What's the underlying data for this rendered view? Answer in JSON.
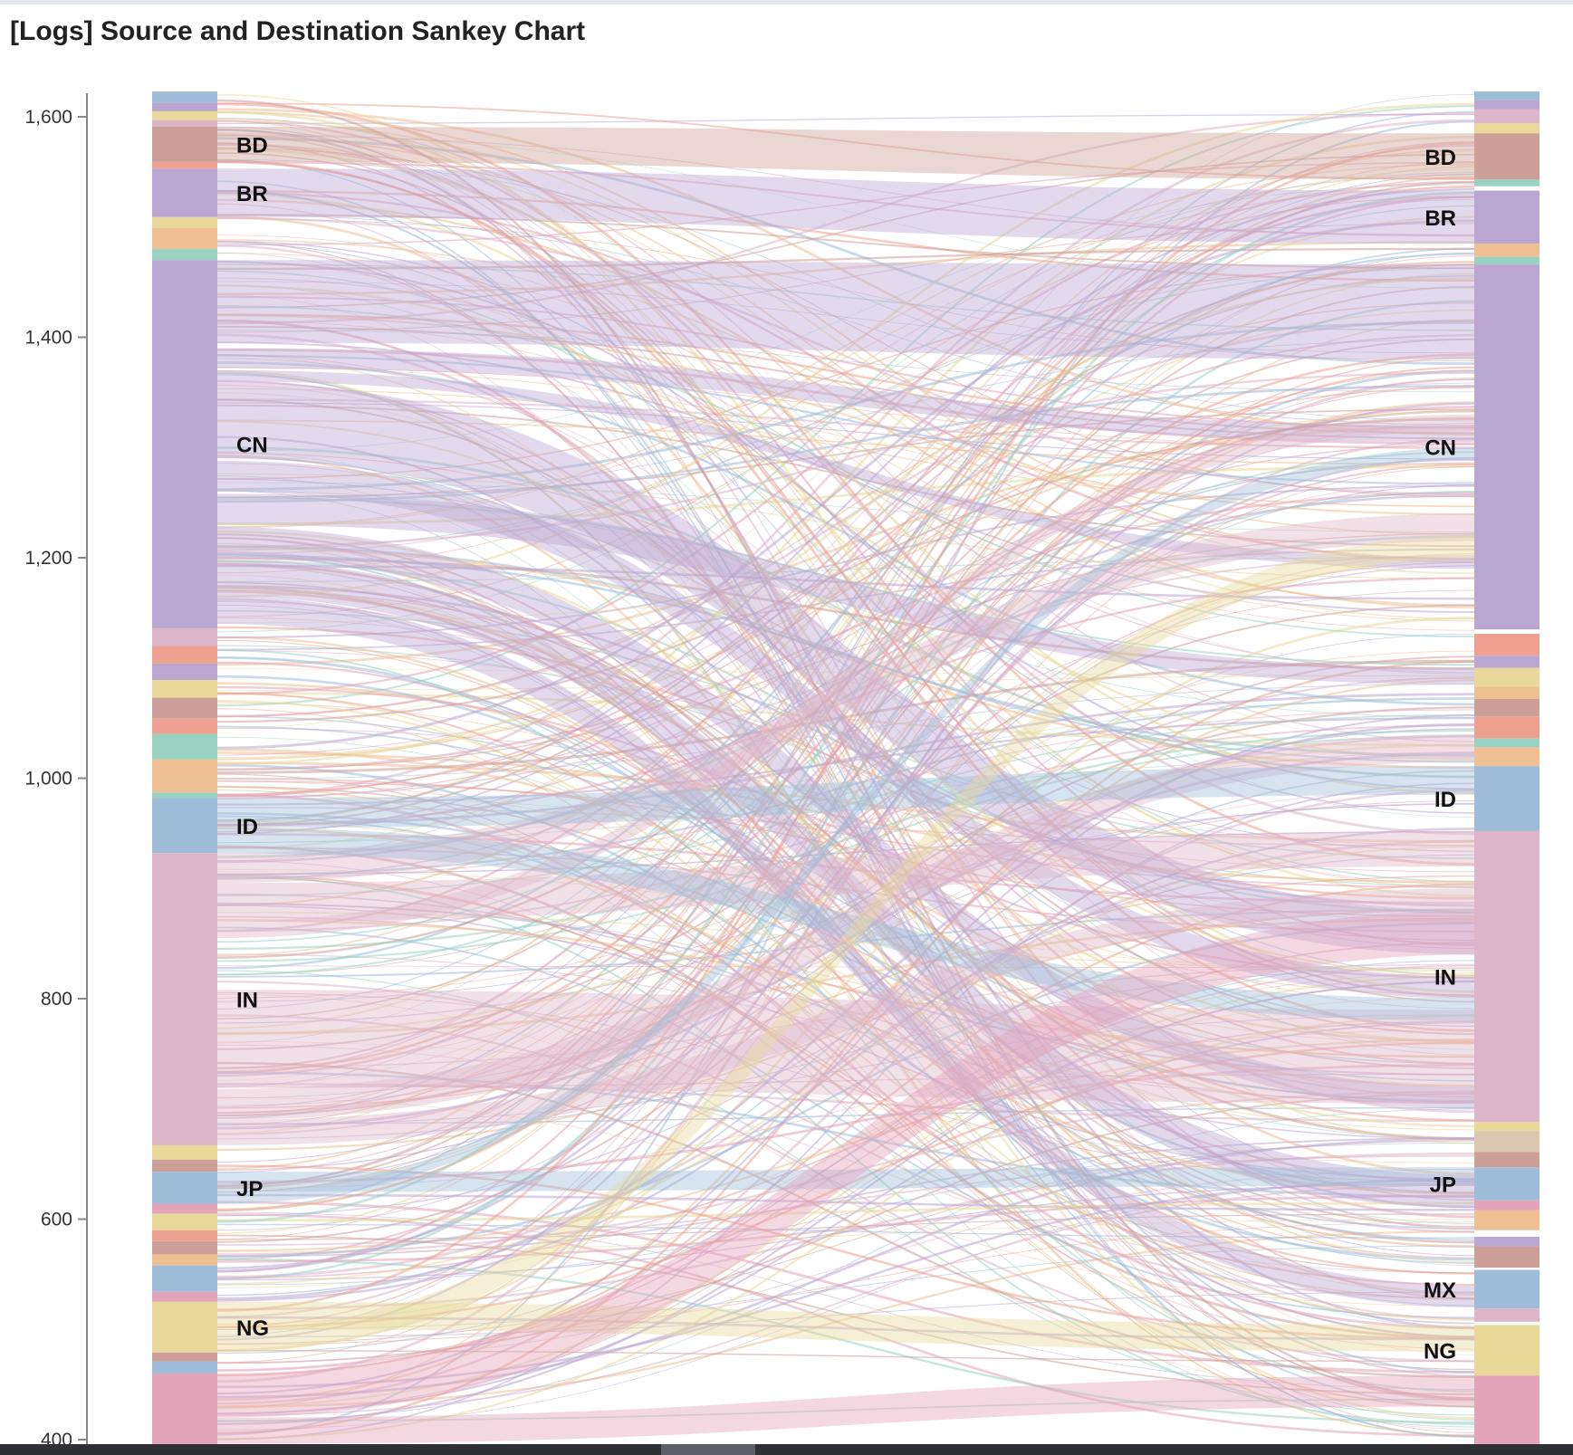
{
  "title": "[Logs] Source and Destination Sankey Chart",
  "chart_data": {
    "type": "sankey",
    "title": "[Logs] Source and Destination Sankey Chart",
    "ylim": [
      396,
      1625
    ],
    "yticks": [
      400,
      600,
      800,
      1000,
      1200,
      1400,
      1600
    ],
    "ytick_labels": [
      "400",
      "600",
      "800",
      "1,000",
      "1,200",
      "1,400",
      "1,600"
    ],
    "colors": {
      "purple": "#b9a6d1",
      "pink": "#ddb5c8",
      "blue": "#9fbcd9",
      "yellow": "#e8d99a",
      "brown": "#cd9f99",
      "salmon": "#eea190",
      "orange": "#eec093",
      "teal": "#9ad2c2",
      "hotpink": "#e3a3b9",
      "beige": "#dcc7b0"
    },
    "source_nodes": [
      {
        "label": "",
        "top": 1623,
        "bottom": 1613,
        "color": "blue"
      },
      {
        "label": "",
        "top": 1613,
        "bottom": 1605,
        "color": "purple"
      },
      {
        "label": "",
        "top": 1605,
        "bottom": 1597,
        "color": "yellow"
      },
      {
        "label": "",
        "top": 1597,
        "bottom": 1591,
        "color": "pink"
      },
      {
        "label": "BD",
        "top": 1591,
        "bottom": 1559,
        "color": "brown"
      },
      {
        "label": "",
        "top": 1559,
        "bottom": 1553,
        "color": "salmon"
      },
      {
        "label": "BR",
        "top": 1553,
        "bottom": 1509,
        "color": "purple"
      },
      {
        "label": "",
        "top": 1509,
        "bottom": 1499,
        "color": "yellow"
      },
      {
        "label": "",
        "top": 1499,
        "bottom": 1480,
        "color": "orange"
      },
      {
        "label": "",
        "top": 1480,
        "bottom": 1470,
        "color": "teal"
      },
      {
        "label": "CN",
        "top": 1470,
        "bottom": 1136,
        "color": "purple"
      },
      {
        "label": "",
        "top": 1136,
        "bottom": 1120,
        "color": "pink"
      },
      {
        "label": "",
        "top": 1120,
        "bottom": 1104,
        "color": "salmon"
      },
      {
        "label": "",
        "top": 1104,
        "bottom": 1089,
        "color": "purple"
      },
      {
        "label": "",
        "top": 1089,
        "bottom": 1073,
        "color": "yellow"
      },
      {
        "label": "",
        "top": 1073,
        "bottom": 1054,
        "color": "brown"
      },
      {
        "label": "",
        "top": 1054,
        "bottom": 1040,
        "color": "salmon"
      },
      {
        "label": "",
        "top": 1040,
        "bottom": 1017,
        "color": "teal"
      },
      {
        "label": "",
        "top": 1017,
        "bottom": 987,
        "color": "orange"
      },
      {
        "label": "",
        "top": 987,
        "bottom": 982,
        "color": "teal"
      },
      {
        "label": "ID",
        "top": 982,
        "bottom": 932,
        "color": "blue"
      },
      {
        "label": "IN",
        "top": 932,
        "bottom": 667,
        "color": "pink"
      },
      {
        "label": "",
        "top": 667,
        "bottom": 654,
        "color": "yellow"
      },
      {
        "label": "",
        "top": 654,
        "bottom": 643,
        "color": "brown"
      },
      {
        "label": "JP",
        "top": 643,
        "bottom": 614,
        "color": "blue"
      },
      {
        "label": "",
        "top": 614,
        "bottom": 605,
        "color": "hotpink"
      },
      {
        "label": "",
        "top": 605,
        "bottom": 590,
        "color": "yellow"
      },
      {
        "label": "",
        "top": 590,
        "bottom": 580,
        "color": "salmon"
      },
      {
        "label": "",
        "top": 580,
        "bottom": 568,
        "color": "brown"
      },
      {
        "label": "",
        "top": 568,
        "bottom": 558,
        "color": "orange"
      },
      {
        "label": "",
        "top": 558,
        "bottom": 534,
        "color": "blue"
      },
      {
        "label": "",
        "top": 534,
        "bottom": 525,
        "color": "hotpink"
      },
      {
        "label": "NG",
        "top": 525,
        "bottom": 479,
        "color": "yellow"
      },
      {
        "label": "",
        "top": 479,
        "bottom": 471,
        "color": "brown"
      },
      {
        "label": "",
        "top": 471,
        "bottom": 460,
        "color": "blue"
      },
      {
        "label": "",
        "top": 460,
        "bottom": 396,
        "color": "hotpink"
      }
    ],
    "dest_nodes": [
      {
        "label": "",
        "top": 1623,
        "bottom": 1615,
        "color": "blue"
      },
      {
        "label": "",
        "top": 1615,
        "bottom": 1607,
        "color": "purple"
      },
      {
        "label": "",
        "top": 1607,
        "bottom": 1594,
        "color": "pink"
      },
      {
        "label": "",
        "top": 1594,
        "bottom": 1585,
        "color": "yellow"
      },
      {
        "label": "BD",
        "top": 1585,
        "bottom": 1543,
        "color": "brown"
      },
      {
        "label": "",
        "top": 1543,
        "bottom": 1537,
        "color": "teal"
      },
      {
        "label": "BR",
        "top": 1533,
        "bottom": 1485,
        "color": "purple"
      },
      {
        "label": "",
        "top": 1485,
        "bottom": 1473,
        "color": "orange"
      },
      {
        "label": "",
        "top": 1473,
        "bottom": 1466,
        "color": "teal"
      },
      {
        "label": "CN",
        "top": 1466,
        "bottom": 1135,
        "color": "purple"
      },
      {
        "label": "",
        "top": 1131,
        "bottom": 1111,
        "color": "salmon"
      },
      {
        "label": "",
        "top": 1111,
        "bottom": 1100,
        "color": "purple"
      },
      {
        "label": "",
        "top": 1100,
        "bottom": 1083,
        "color": "yellow"
      },
      {
        "label": "",
        "top": 1083,
        "bottom": 1072,
        "color": "orange"
      },
      {
        "label": "",
        "top": 1072,
        "bottom": 1056,
        "color": "brown"
      },
      {
        "label": "",
        "top": 1056,
        "bottom": 1036,
        "color": "salmon"
      },
      {
        "label": "",
        "top": 1036,
        "bottom": 1028,
        "color": "teal"
      },
      {
        "label": "",
        "top": 1028,
        "bottom": 1011,
        "color": "orange"
      },
      {
        "label": "ID",
        "top": 1011,
        "bottom": 952,
        "color": "blue"
      },
      {
        "label": "IN",
        "top": 952,
        "bottom": 688,
        "color": "pink"
      },
      {
        "label": "",
        "top": 688,
        "bottom": 680,
        "color": "yellow"
      },
      {
        "label": "",
        "top": 680,
        "bottom": 661,
        "color": "beige"
      },
      {
        "label": "",
        "top": 661,
        "bottom": 647,
        "color": "brown"
      },
      {
        "label": "JP",
        "top": 647,
        "bottom": 617,
        "color": "blue"
      },
      {
        "label": "",
        "top": 617,
        "bottom": 608,
        "color": "hotpink"
      },
      {
        "label": "",
        "top": 608,
        "bottom": 590,
        "color": "orange"
      },
      {
        "label": "",
        "top": 584,
        "bottom": 575,
        "color": "purple"
      },
      {
        "label": "",
        "top": 575,
        "bottom": 556,
        "color": "brown"
      },
      {
        "label": "MX",
        "top": 554,
        "bottom": 519,
        "color": "blue"
      },
      {
        "label": "",
        "top": 519,
        "bottom": 507,
        "color": "pink"
      },
      {
        "label": "NG",
        "top": 504,
        "bottom": 458,
        "color": "yellow"
      },
      {
        "label": "",
        "top": 458,
        "bottom": 396,
        "color": "hotpink"
      }
    ],
    "flows": [
      {
        "s_top": 1470,
        "s_bottom": 1455,
        "d_top": 1466,
        "d_bottom": 1440,
        "color": "purple"
      },
      {
        "s_top": 1455,
        "s_bottom": 1395,
        "d_top": 1440,
        "d_bottom": 1380,
        "color": "purple"
      },
      {
        "s_top": 1390,
        "s_bottom": 1372,
        "d_top": 1320,
        "d_bottom": 1305,
        "color": "purple"
      },
      {
        "s_top": 1370,
        "s_bottom": 1360,
        "d_top": 1200,
        "d_bottom": 1190,
        "color": "purple"
      },
      {
        "s_top": 1360,
        "s_bottom": 1290,
        "d_top": 880,
        "d_bottom": 840,
        "color": "purple"
      },
      {
        "s_top": 1288,
        "s_bottom": 1260,
        "d_top": 820,
        "d_bottom": 800,
        "color": "purple"
      },
      {
        "s_top": 1258,
        "s_bottom": 1230,
        "d_top": 1100,
        "d_bottom": 1085,
        "color": "purple"
      },
      {
        "s_top": 1228,
        "s_bottom": 1200,
        "d_top": 720,
        "d_bottom": 700,
        "color": "purple"
      },
      {
        "s_top": 1198,
        "s_bottom": 1165,
        "d_top": 640,
        "d_bottom": 610,
        "color": "purple"
      },
      {
        "s_top": 1165,
        "s_bottom": 1140,
        "d_top": 540,
        "d_bottom": 520,
        "color": "purple"
      },
      {
        "s_top": 1553,
        "s_bottom": 1530,
        "d_top": 1533,
        "d_bottom": 1505,
        "color": "purple"
      },
      {
        "s_top": 1530,
        "s_bottom": 1509,
        "d_top": 1505,
        "d_bottom": 1485,
        "color": "purple"
      },
      {
        "s_top": 1591,
        "s_bottom": 1575,
        "d_top": 1585,
        "d_bottom": 1565,
        "color": "brown"
      },
      {
        "s_top": 1575,
        "s_bottom": 1559,
        "d_top": 1565,
        "d_bottom": 1543,
        "color": "brown"
      },
      {
        "s_top": 932,
        "s_bottom": 905,
        "d_top": 1240,
        "d_bottom": 1215,
        "color": "pink"
      },
      {
        "s_top": 905,
        "s_bottom": 870,
        "d_top": 952,
        "d_bottom": 920,
        "color": "pink"
      },
      {
        "s_top": 870,
        "s_bottom": 855,
        "d_top": 1330,
        "d_bottom": 1315,
        "color": "pink"
      },
      {
        "s_top": 808,
        "s_bottom": 760,
        "d_top": 790,
        "d_bottom": 745,
        "color": "pink"
      },
      {
        "s_top": 760,
        "s_bottom": 720,
        "d_top": 745,
        "d_bottom": 705,
        "color": "pink"
      },
      {
        "s_top": 718,
        "s_bottom": 690,
        "d_top": 1040,
        "d_bottom": 1015,
        "color": "pink"
      },
      {
        "s_top": 690,
        "s_bottom": 667,
        "d_top": 900,
        "d_bottom": 880,
        "color": "pink"
      },
      {
        "s_top": 982,
        "s_bottom": 955,
        "d_top": 1011,
        "d_bottom": 985,
        "color": "blue"
      },
      {
        "s_top": 955,
        "s_bottom": 932,
        "d_top": 800,
        "d_bottom": 780,
        "color": "blue"
      },
      {
        "s_top": 643,
        "s_bottom": 625,
        "d_top": 647,
        "d_bottom": 630,
        "color": "blue"
      },
      {
        "s_top": 625,
        "s_bottom": 614,
        "d_top": 1300,
        "d_bottom": 1290,
        "color": "blue"
      },
      {
        "s_top": 525,
        "s_bottom": 500,
        "d_top": 504,
        "d_bottom": 480,
        "color": "yellow"
      },
      {
        "s_top": 500,
        "s_bottom": 479,
        "d_top": 1220,
        "d_bottom": 1200,
        "color": "yellow"
      },
      {
        "s_top": 460,
        "s_bottom": 420,
        "d_top": 880,
        "d_bottom": 840,
        "color": "hotpink"
      },
      {
        "s_top": 420,
        "s_bottom": 396,
        "d_top": 458,
        "d_bottom": 430,
        "color": "hotpink"
      }
    ]
  }
}
